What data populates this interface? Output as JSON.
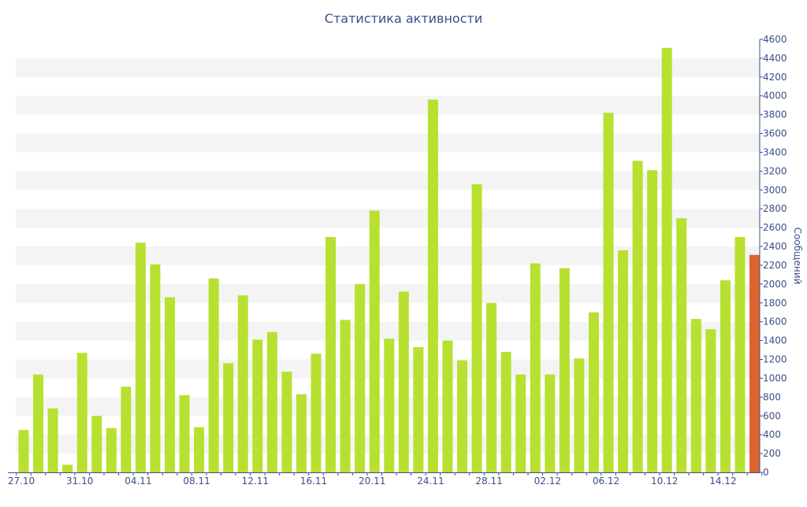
{
  "chart_data": {
    "type": "bar",
    "title": "Статистика активности",
    "xlabel": "",
    "ylabel": "Сообщений",
    "ylim": [
      0,
      4600
    ],
    "y_ticks": [
      0,
      200,
      400,
      600,
      800,
      1000,
      1200,
      1400,
      1600,
      1800,
      2000,
      2200,
      2400,
      2600,
      2800,
      3000,
      3200,
      3400,
      3600,
      3800,
      4000,
      4200,
      4400,
      4600
    ],
    "x_tick_labels": [
      {
        "label": "27.10",
        "index": 0
      },
      {
        "label": "31.10",
        "index": 4
      },
      {
        "label": "04.11",
        "index": 8
      },
      {
        "label": "08.11",
        "index": 12
      },
      {
        "label": "12.11",
        "index": 16
      },
      {
        "label": "16.11",
        "index": 20
      },
      {
        "label": "20.11",
        "index": 24
      },
      {
        "label": "24.11",
        "index": 28
      },
      {
        "label": "28.11",
        "index": 32
      },
      {
        "label": "02.12",
        "index": 36
      },
      {
        "label": "06.12",
        "index": 40
      },
      {
        "label": "10.12",
        "index": 44
      },
      {
        "label": "14.12",
        "index": 48
      }
    ],
    "categories": [
      "27.10",
      "28.10",
      "29.10",
      "30.10",
      "31.10",
      "01.11",
      "02.11",
      "03.11",
      "04.11",
      "05.11",
      "06.11",
      "07.11",
      "08.11",
      "09.11",
      "10.11",
      "11.11",
      "12.11",
      "13.11",
      "14.11",
      "15.11",
      "16.11",
      "17.11",
      "18.11",
      "19.11",
      "20.11",
      "21.11",
      "22.11",
      "23.11",
      "24.11",
      "25.11",
      "26.11",
      "27.11",
      "28.11",
      "29.11",
      "30.11",
      "01.12",
      "02.12",
      "03.12",
      "04.12",
      "05.12",
      "06.12",
      "07.12",
      "08.12",
      "09.12",
      "10.12",
      "11.12",
      "12.12",
      "13.12",
      "14.12",
      "15.12",
      "16.12"
    ],
    "values": [
      450,
      1040,
      680,
      80,
      1270,
      600,
      470,
      910,
      2440,
      2210,
      1860,
      820,
      480,
      2060,
      1160,
      1880,
      1410,
      1490,
      1070,
      830,
      1260,
      2500,
      1620,
      2000,
      2780,
      1420,
      1920,
      1330,
      3960,
      1400,
      1190,
      3060,
      1800,
      1280,
      1040,
      2220,
      1040,
      2170,
      1210,
      1700,
      3820,
      2360,
      3310,
      3210,
      4510,
      2700,
      1630,
      1520,
      2040,
      2500,
      2310
    ],
    "highlight_index": 50,
    "colors": {
      "bar": "#b8e030",
      "highlight": "#e0622d",
      "band": "#f4f4f4",
      "axis": "#3d4d8a"
    },
    "grid": "alternating horizontal bands",
    "y_axis_position": "right",
    "legend": "none"
  }
}
